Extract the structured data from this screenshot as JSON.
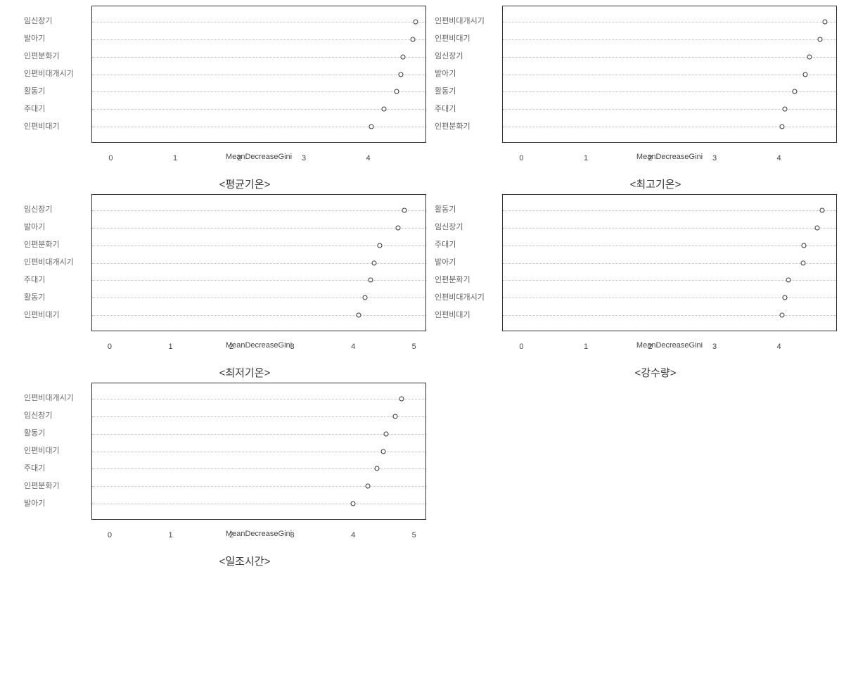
{
  "global": {
    "xlabel": "MeanDecreaseGini",
    "marker_style": "open-circle",
    "marker_size": 7,
    "marker_border_color": "#333333",
    "marker_fill_color": "#ffffff",
    "gridline_style": "dotted",
    "gridline_color": "#bbbbbb",
    "border_color": "#333333",
    "background_color": "#ffffff",
    "label_color": "#666666",
    "label_fontsize": 11,
    "caption_fontsize": 15,
    "caption_color": "#333333"
  },
  "charts": [
    {
      "id": "chart_avg_temp",
      "caption": "<평균기온>",
      "type": "dotplot",
      "xlim": [
        -0.3,
        4.9
      ],
      "xticks": [
        0,
        1,
        2,
        3,
        4
      ],
      "items": [
        {
          "label": "임신장기",
          "value": 4.75
        },
        {
          "label": "발아기",
          "value": 4.7
        },
        {
          "label": "인편분화기",
          "value": 4.55
        },
        {
          "label": "인편비대개시기",
          "value": 4.52
        },
        {
          "label": "활동기",
          "value": 4.45
        },
        {
          "label": "주대기",
          "value": 4.25
        },
        {
          "label": "인편비대기",
          "value": 4.05
        }
      ]
    },
    {
      "id": "chart_max_temp",
      "caption": "<최고기온>",
      "type": "dotplot",
      "xlim": [
        -0.3,
        4.9
      ],
      "xticks": [
        0,
        1,
        2,
        3,
        4
      ],
      "items": [
        {
          "label": "인편비대개시기",
          "value": 4.72
        },
        {
          "label": "인편비대기",
          "value": 4.65
        },
        {
          "label": "임신장기",
          "value": 4.48
        },
        {
          "label": "발아기",
          "value": 4.42
        },
        {
          "label": "활동기",
          "value": 4.25
        },
        {
          "label": "주대기",
          "value": 4.1
        },
        {
          "label": "인편분화기",
          "value": 4.05
        }
      ]
    },
    {
      "id": "chart_min_temp",
      "caption": "<최저기온>",
      "type": "dotplot",
      "xlim": [
        -0.3,
        5.2
      ],
      "xticks": [
        0,
        1,
        2,
        3,
        4,
        5
      ],
      "items": [
        {
          "label": "임신장기",
          "value": 4.85
        },
        {
          "label": "발아기",
          "value": 4.75
        },
        {
          "label": "인편분화기",
          "value": 4.45
        },
        {
          "label": "인편비대개시기",
          "value": 4.35
        },
        {
          "label": "주대기",
          "value": 4.3
        },
        {
          "label": "활동기",
          "value": 4.2
        },
        {
          "label": "인편비대기",
          "value": 4.1
        }
      ]
    },
    {
      "id": "chart_precip",
      "caption": "<강수량>",
      "type": "dotplot",
      "xlim": [
        -0.3,
        4.9
      ],
      "xticks": [
        0,
        1,
        2,
        3,
        4
      ],
      "items": [
        {
          "label": "활동기",
          "value": 4.68
        },
        {
          "label": "임신장기",
          "value": 4.6
        },
        {
          "label": "주대기",
          "value": 4.4
        },
        {
          "label": "발아기",
          "value": 4.38
        },
        {
          "label": "인편분화기",
          "value": 4.15
        },
        {
          "label": "인편비대개시기",
          "value": 4.1
        },
        {
          "label": "인편비대기",
          "value": 4.05
        }
      ]
    },
    {
      "id": "chart_sunshine",
      "caption": "<일조시간>",
      "type": "dotplot",
      "xlim": [
        -0.3,
        5.2
      ],
      "xticks": [
        0,
        1,
        2,
        3,
        4,
        5
      ],
      "items": [
        {
          "label": "인편비대개시기",
          "value": 4.8
        },
        {
          "label": "임신장기",
          "value": 4.7
        },
        {
          "label": "활동기",
          "value": 4.55
        },
        {
          "label": "인편비대기",
          "value": 4.5
        },
        {
          "label": "주대기",
          "value": 4.4
        },
        {
          "label": "인편분화기",
          "value": 4.25
        },
        {
          "label": "발아기",
          "value": 4.0
        }
      ]
    }
  ]
}
